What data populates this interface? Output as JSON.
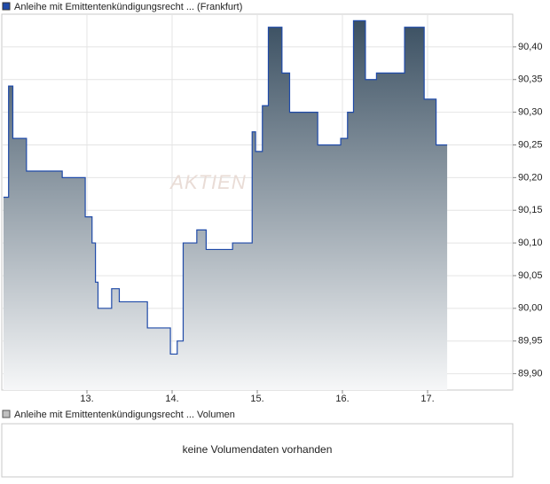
{
  "chart_data": {
    "type": "step-area",
    "watermark": "AKTIEN",
    "series": [
      {
        "name": "Anleihe mit Emittentenkündigungsrecht ... (Frankfurt)",
        "color": "#1f4aa8",
        "x": [
          12.02,
          12.08,
          12.13,
          12.29,
          12.71,
          12.98,
          13.06,
          13.1,
          13.13,
          13.29,
          13.38,
          13.71,
          13.98,
          14.06,
          14.13,
          14.29,
          14.4,
          14.71,
          14.94,
          14.98,
          15.06,
          15.13,
          15.29,
          15.38,
          15.71,
          15.98,
          16.06,
          16.13,
          16.27,
          16.4,
          16.73,
          16.96,
          17.1,
          17.23
        ],
        "values": [
          90.17,
          90.34,
          90.26,
          90.21,
          90.2,
          90.14,
          90.1,
          90.04,
          90.0,
          90.03,
          90.01,
          89.97,
          89.93,
          89.95,
          90.1,
          90.12,
          90.09,
          90.1,
          90.27,
          90.24,
          90.31,
          90.43,
          90.36,
          90.3,
          90.25,
          90.26,
          90.3,
          90.44,
          90.35,
          90.36,
          90.43,
          90.32,
          90.25,
          90.25
        ]
      }
    ],
    "xlim": [
      12,
      18
    ],
    "xticks": [
      {
        "value": 13,
        "label": "13."
      },
      {
        "value": 14,
        "label": "14."
      },
      {
        "value": 15,
        "label": "15."
      },
      {
        "value": 16,
        "label": "16."
      },
      {
        "value": 17,
        "label": "17."
      }
    ],
    "ylim": [
      89.875,
      90.45
    ],
    "yticks": [
      {
        "value": 89.9,
        "label": "89,90"
      },
      {
        "value": 89.95,
        "label": "89,95"
      },
      {
        "value": 90.0,
        "label": "90,00"
      },
      {
        "value": 90.05,
        "label": "90,05"
      },
      {
        "value": 90.1,
        "label": "90,10"
      },
      {
        "value": 90.15,
        "label": "90,15"
      },
      {
        "value": 90.2,
        "label": "90,20"
      },
      {
        "value": 90.25,
        "label": "90,25"
      },
      {
        "value": 90.3,
        "label": "90,30"
      },
      {
        "value": 90.35,
        "label": "90,35"
      },
      {
        "value": 90.4,
        "label": "90,40"
      }
    ],
    "grid": true
  },
  "volume_panel": {
    "legend": "Anleihe mit Emittentenkündigungsrecht ... Volumen",
    "color": "#c0c0c0",
    "message": "keine Volumendaten vorhanden"
  }
}
